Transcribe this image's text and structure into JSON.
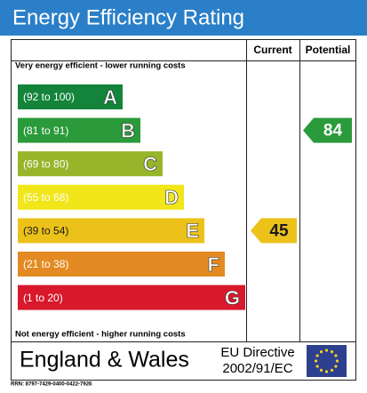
{
  "header": {
    "title": "Energy Efficiency Rating"
  },
  "columns": {
    "current": "Current",
    "potential": "Potential"
  },
  "top_note": "Very energy efficient - lower running costs",
  "bottom_note": "Not energy efficient - higher running costs",
  "bands": [
    {
      "range_label": "(92 to 100)",
      "range": [
        92,
        100
      ],
      "letter": "A",
      "color": "#13843a",
      "text_color": "#ffffff"
    },
    {
      "range_label": "(81 to 91)",
      "range": [
        81,
        91
      ],
      "letter": "B",
      "color": "#2a9a3a",
      "text_color": "#ffffff"
    },
    {
      "range_label": "(69 to 80)",
      "range": [
        69,
        80
      ],
      "letter": "C",
      "color": "#97b52a",
      "text_color": "#ffffff"
    },
    {
      "range_label": "(55 to 68)",
      "range": [
        55,
        68
      ],
      "letter": "D",
      "color": "#f1e61a",
      "text_color": "#ffffff"
    },
    {
      "range_label": "(39 to 54)",
      "range": [
        39,
        54
      ],
      "letter": "E",
      "color": "#ecc21a",
      "text_color": "#1a1a1a"
    },
    {
      "range_label": "(21 to 38)",
      "range": [
        21,
        38
      ],
      "letter": "F",
      "color": "#e48a22",
      "text_color": "#ffffff"
    },
    {
      "range_label": "(1 to 20)",
      "range": [
        1,
        20
      ],
      "letter": "G",
      "color": "#d8182b",
      "text_color": "#ffffff"
    }
  ],
  "current": 45,
  "potential": 84,
  "footer": {
    "region": "England & Wales",
    "directive_line1": "EU Directive",
    "directive_line2": "2002/91/EC"
  },
  "rrn": "RRN: 8797-7429-0400-0422-7926"
}
